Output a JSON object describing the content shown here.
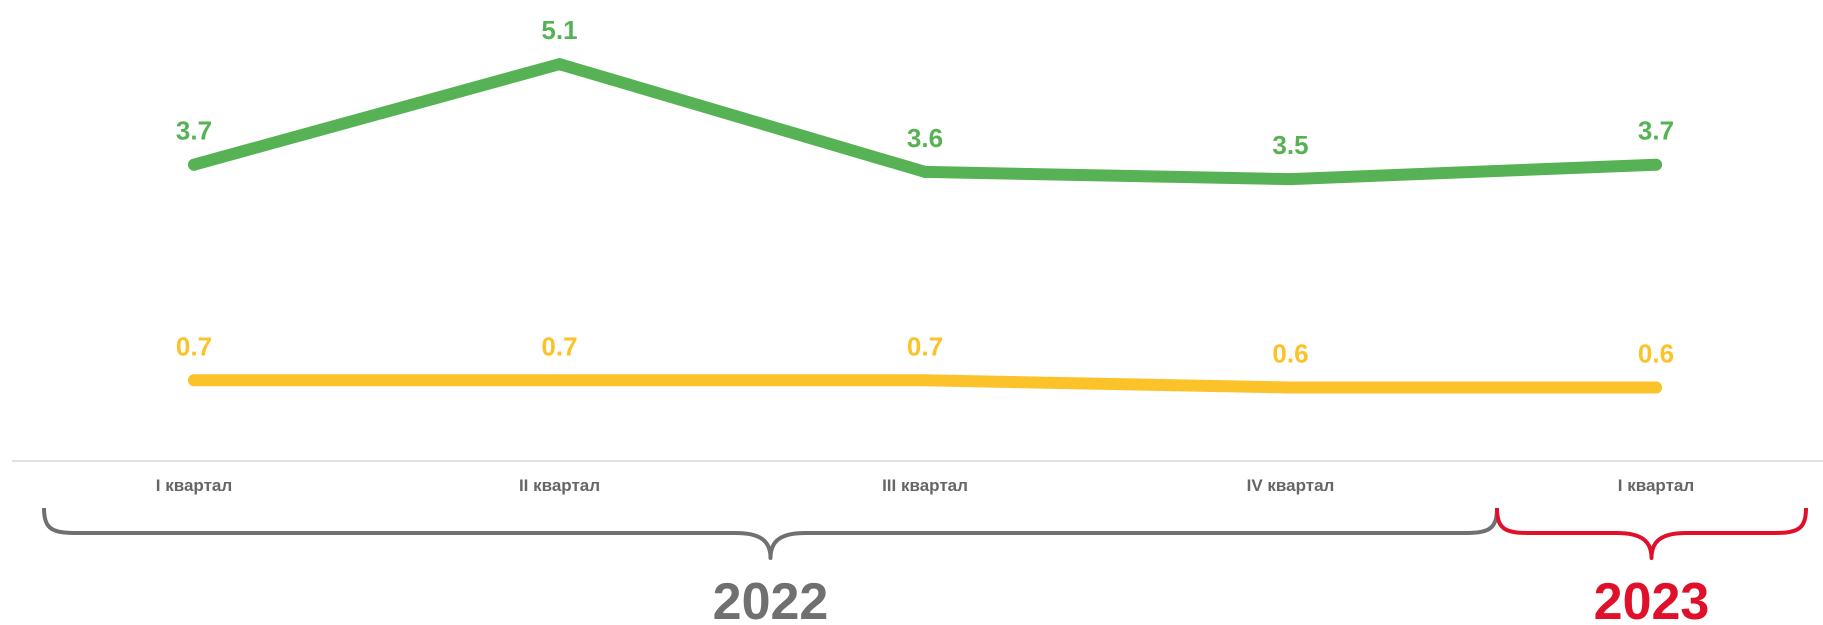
{
  "chart_data": {
    "type": "line",
    "categories": [
      "I квартал",
      "II квартал",
      "III квартал",
      "IV квартал",
      "I квартал"
    ],
    "groups": [
      {
        "label": "2022",
        "from": 0,
        "to": 3,
        "color": "#707070"
      },
      {
        "label": "2023",
        "from": 4,
        "to": 4,
        "color": "#e0102a"
      }
    ],
    "series": [
      {
        "values": [
          3.7,
          5.1,
          3.6,
          3.5,
          3.7
        ],
        "labels": [
          "3.7",
          "5.1",
          "3.6",
          "3.5",
          "3.7"
        ],
        "color": "#56b254"
      },
      {
        "values": [
          0.7,
          0.7,
          0.7,
          0.6,
          0.6
        ],
        "labels": [
          "0.7",
          "0.7",
          "0.7",
          "0.6",
          "0.6"
        ],
        "color": "#fcc22a"
      }
    ],
    "ylim": [
      0.0,
      6.0
    ],
    "grid": false,
    "legend": "none"
  }
}
